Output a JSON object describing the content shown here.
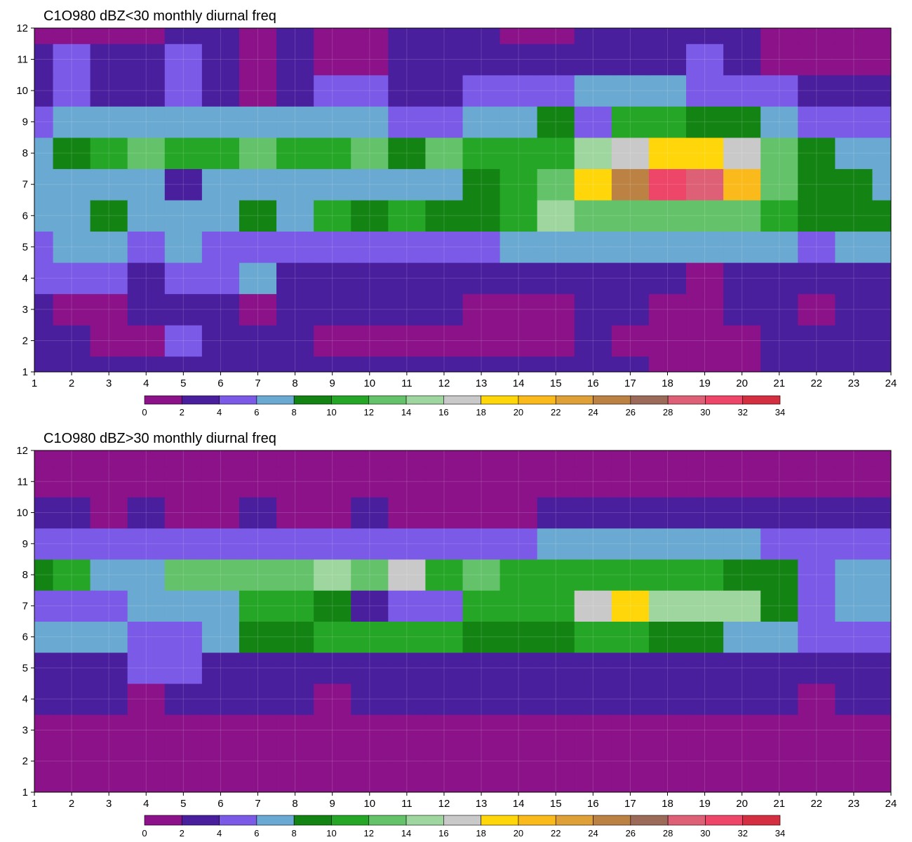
{
  "colorbar": {
    "levels": [
      0,
      2,
      4,
      6,
      8,
      10,
      12,
      14,
      16,
      18,
      20,
      22,
      24,
      26,
      28,
      30,
      32,
      34
    ],
    "colors": [
      "#8b1289",
      "#4a1f9e",
      "#7a5ae6",
      "#6aa9d2",
      "#138414",
      "#25a626",
      "#64c36a",
      "#9fd69f",
      "#c9c9c9",
      "#ffd60a",
      "#fbba1c",
      "#e0a038",
      "#bc8244",
      "#9b6a58",
      "#dd6077",
      "#ee4668",
      "#d42f40"
    ],
    "contour_line_color": "#e8a93a"
  },
  "chart_data": [
    {
      "type": "heatmap",
      "title": "C1O980 dBZ<30 monthly diurnal freq",
      "xlim": [
        1,
        24
      ],
      "ylim": [
        1,
        12
      ],
      "x_ticks": [
        "1",
        "2",
        "3",
        "4",
        "5",
        "6",
        "7",
        "8",
        "9",
        "10",
        "11",
        "12",
        "13",
        "14",
        "15",
        "16",
        "17",
        "18",
        "19",
        "20",
        "21",
        "22",
        "23",
        "24"
      ],
      "y_ticks": [
        "1",
        "2",
        "3",
        "4",
        "5",
        "6",
        "7",
        "8",
        "9",
        "10",
        "11",
        "12"
      ],
      "x": [
        1,
        2,
        3,
        4,
        5,
        6,
        7,
        8,
        9,
        10,
        11,
        12,
        13,
        14,
        15,
        16,
        17,
        18,
        19,
        20,
        21,
        22,
        23,
        24
      ],
      "y": [
        1,
        2,
        3,
        4,
        5,
        6,
        7,
        8,
        9,
        10,
        11,
        12
      ],
      "z": [
        [
          2,
          3,
          3,
          3,
          3,
          3,
          3,
          3,
          3,
          3,
          3,
          3,
          3,
          2,
          2,
          3,
          3,
          1,
          1,
          1,
          3,
          3,
          2,
          3
        ],
        [
          2,
          3,
          1,
          1,
          5,
          3,
          3,
          3,
          1,
          1,
          1,
          1,
          1,
          1,
          1,
          2,
          1,
          1,
          1,
          1,
          3,
          3,
          3,
          3
        ],
        [
          3,
          1,
          1,
          3,
          3,
          3,
          1,
          3,
          3,
          3,
          3,
          3,
          1,
          1,
          1,
          3,
          3,
          1,
          1,
          3,
          3,
          1,
          3,
          3
        ],
        [
          4,
          5,
          5,
          3,
          4,
          5,
          6,
          3,
          3,
          3,
          3,
          3,
          3,
          3,
          3,
          3,
          3,
          3,
          1,
          3,
          3,
          3,
          3,
          3
        ],
        [
          5,
          7,
          7,
          5,
          6,
          5,
          5,
          5,
          5,
          5,
          5,
          5,
          5,
          6,
          7,
          7,
          7,
          6,
          6,
          6,
          6,
          5,
          6,
          6
        ],
        [
          7,
          7,
          9,
          7,
          7,
          7,
          9,
          7,
          10,
          9,
          10,
          9,
          9,
          11,
          14,
          13,
          12,
          13,
          13,
          12,
          11,
          8,
          8,
          8
        ],
        [
          7,
          7,
          7,
          6,
          3,
          7,
          7,
          7,
          7,
          7,
          7,
          7,
          9,
          11,
          13,
          19,
          24,
          30,
          29,
          21,
          12,
          9,
          8,
          7
        ],
        [
          7,
          9,
          11,
          12,
          11,
          11,
          12,
          11,
          11,
          13,
          9,
          13,
          11,
          11,
          11,
          14,
          17,
          19,
          19,
          17,
          13,
          9,
          7,
          7
        ],
        [
          5,
          6,
          7,
          7,
          7,
          7,
          7,
          7,
          7,
          7,
          5,
          5,
          6,
          7,
          9,
          5,
          11,
          11,
          9,
          9,
          7,
          5,
          5,
          5
        ],
        [
          3,
          5,
          3,
          3,
          5,
          3,
          1,
          3,
          5,
          5,
          3,
          3,
          5,
          5,
          5,
          7,
          7,
          7,
          5,
          5,
          5,
          3,
          3,
          3
        ],
        [
          3,
          5,
          3,
          3,
          5,
          3,
          1,
          3,
          1,
          1,
          3,
          3,
          3,
          3,
          3,
          3,
          3,
          3,
          5,
          3,
          1,
          1,
          1,
          1
        ],
        [
          1,
          1,
          1,
          1,
          3,
          3,
          1,
          3,
          1,
          1,
          3,
          3,
          3,
          1,
          1,
          3,
          3,
          3,
          3,
          3,
          1,
          1,
          1,
          1
        ]
      ]
    },
    {
      "type": "heatmap",
      "title": "C1O980 dBZ>30 monthly diurnal freq",
      "xlim": [
        1,
        24
      ],
      "ylim": [
        1,
        12
      ],
      "x_ticks": [
        "1",
        "2",
        "3",
        "4",
        "5",
        "6",
        "7",
        "8",
        "9",
        "10",
        "11",
        "12",
        "13",
        "14",
        "15",
        "16",
        "17",
        "18",
        "19",
        "20",
        "21",
        "22",
        "23",
        "24"
      ],
      "y_ticks": [
        "1",
        "2",
        "3",
        "4",
        "5",
        "6",
        "7",
        "8",
        "9",
        "10",
        "11",
        "12"
      ],
      "x": [
        1,
        2,
        3,
        4,
        5,
        6,
        7,
        8,
        9,
        10,
        11,
        12,
        13,
        14,
        15,
        16,
        17,
        18,
        19,
        20,
        21,
        22,
        23,
        24
      ],
      "y": [
        1,
        2,
        3,
        4,
        5,
        6,
        7,
        8,
        9,
        10,
        11,
        12
      ],
      "z": [
        [
          1,
          1,
          1,
          1,
          1,
          1,
          1,
          1,
          1,
          1,
          1,
          1,
          1,
          1,
          1,
          1,
          1,
          1,
          1,
          1,
          1,
          1,
          1,
          1
        ],
        [
          1,
          1,
          1,
          1,
          1,
          1,
          1,
          1,
          1,
          1,
          1,
          1,
          1,
          1,
          1,
          1,
          1,
          1,
          1,
          1,
          1,
          1,
          1,
          1
        ],
        [
          1,
          1,
          1,
          1,
          1,
          1,
          1,
          1,
          1,
          1,
          1,
          1,
          1,
          1,
          1,
          1,
          1,
          1,
          1,
          1,
          1,
          1,
          1,
          1
        ],
        [
          3,
          3,
          3,
          1,
          3,
          3,
          3,
          3,
          1,
          3,
          3,
          3,
          3,
          3,
          3,
          3,
          3,
          3,
          3,
          3,
          3,
          1,
          3,
          3
        ],
        [
          2,
          2,
          3,
          5,
          5,
          3,
          3,
          3,
          3,
          3,
          3,
          3,
          3,
          3,
          3,
          3,
          3,
          3,
          3,
          3,
          3,
          3,
          3,
          3
        ],
        [
          7,
          7,
          7,
          5,
          5,
          7,
          9,
          9,
          11,
          11,
          11,
          11,
          9,
          9,
          9,
          11,
          11,
          9,
          9,
          7,
          7,
          5,
          5,
          5
        ],
        [
          5,
          5,
          5,
          7,
          7,
          7,
          11,
          11,
          9,
          3,
          5,
          5,
          11,
          11,
          11,
          17,
          19,
          15,
          15,
          15,
          9,
          5,
          7,
          7
        ],
        [
          9,
          11,
          7,
          7,
          13,
          13,
          13,
          13,
          15,
          13,
          16,
          11,
          13,
          11,
          11,
          11,
          11,
          11,
          11,
          9,
          9,
          5,
          7,
          7
        ],
        [
          5,
          5,
          5,
          5,
          5,
          5,
          5,
          5,
          5,
          5,
          5,
          5,
          5,
          5,
          7,
          7,
          7,
          7,
          7,
          7,
          5,
          5,
          5,
          5
        ],
        [
          3,
          3,
          1,
          3,
          1,
          1,
          3,
          1,
          1,
          3,
          1,
          1,
          1,
          1,
          3,
          3,
          3,
          3,
          3,
          3,
          3,
          3,
          3,
          3
        ],
        [
          1,
          1,
          1,
          1,
          1,
          1,
          1,
          1,
          1,
          1,
          1,
          1,
          1,
          1,
          1,
          1,
          1,
          1,
          1,
          1,
          1,
          1,
          1,
          1
        ],
        [
          1,
          1,
          1,
          1,
          1,
          1,
          1,
          1,
          1,
          1,
          1,
          1,
          1,
          1,
          1,
          1,
          1,
          1,
          1,
          1,
          1,
          1,
          1,
          1
        ]
      ]
    }
  ]
}
